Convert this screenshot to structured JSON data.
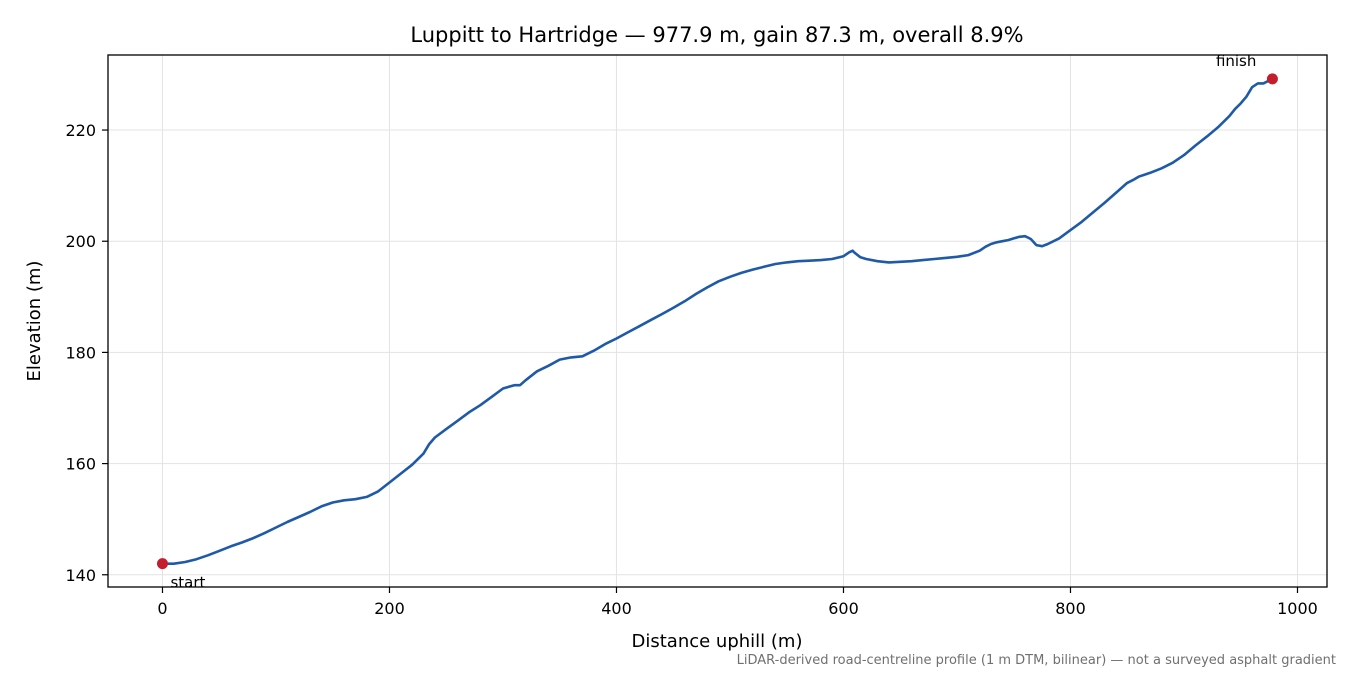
{
  "chart_data": {
    "type": "line",
    "title": "Luppitt to Hartridge — 977.9 m, gain 87.3 m, overall 8.9%",
    "xlabel": "Distance uphill (m)",
    "ylabel": "Elevation (m)",
    "xlim": [
      -48,
      1026
    ],
    "ylim": [
      137.8,
      233.5
    ],
    "xticks": [
      0,
      200,
      400,
      600,
      800,
      1000
    ],
    "yticks": [
      140,
      160,
      180,
      200,
      220
    ],
    "xtick_labels": [
      "0",
      "200",
      "400",
      "600",
      "800",
      "1000"
    ],
    "ytick_labels": [
      "140",
      "160",
      "180",
      "200",
      "220"
    ],
    "grid": true,
    "series": [
      {
        "name": "",
        "color": "#1f5aa8",
        "x": [
          0,
          10,
          20,
          30,
          40,
          50,
          60,
          70,
          80,
          90,
          100,
          110,
          120,
          130,
          140,
          150,
          160,
          170,
          180,
          190,
          200,
          210,
          220,
          230,
          235,
          240,
          250,
          260,
          270,
          280,
          290,
          300,
          310,
          315,
          320,
          330,
          340,
          350,
          360,
          370,
          380,
          390,
          400,
          410,
          420,
          430,
          440,
          450,
          460,
          470,
          480,
          490,
          500,
          510,
          520,
          530,
          540,
          550,
          560,
          570,
          580,
          590,
          600,
          605,
          608,
          610,
          615,
          620,
          630,
          640,
          650,
          660,
          670,
          680,
          690,
          700,
          710,
          720,
          725,
          730,
          735,
          740,
          745,
          750,
          755,
          760,
          765,
          770,
          775,
          780,
          790,
          800,
          810,
          820,
          830,
          840,
          850,
          855,
          860,
          870,
          880,
          890,
          900,
          910,
          920,
          930,
          940,
          945,
          950,
          955,
          960,
          965,
          970,
          977.9
        ],
        "y": [
          142.0,
          142.0,
          142.3,
          142.8,
          143.5,
          144.3,
          145.1,
          145.8,
          146.6,
          147.5,
          148.5,
          149.5,
          150.4,
          151.3,
          152.3,
          153.0,
          153.4,
          153.6,
          154.0,
          155.0,
          156.6,
          158.2,
          159.8,
          161.8,
          163.5,
          164.7,
          166.2,
          167.7,
          169.2,
          170.5,
          172.0,
          173.5,
          174.1,
          174.1,
          175.0,
          176.6,
          177.6,
          178.7,
          179.1,
          179.3,
          180.3,
          181.5,
          182.5,
          183.6,
          184.7,
          185.8,
          186.9,
          188.0,
          189.2,
          190.5,
          191.7,
          192.8,
          193.6,
          194.3,
          194.9,
          195.4,
          195.9,
          196.2,
          196.4,
          196.5,
          196.6,
          196.8,
          197.3,
          198.0,
          198.3,
          197.9,
          197.1,
          196.8,
          196.4,
          196.2,
          196.3,
          196.4,
          196.6,
          196.8,
          197.0,
          197.2,
          197.5,
          198.3,
          199.0,
          199.5,
          199.8,
          200.0,
          200.2,
          200.5,
          200.8,
          200.9,
          200.4,
          199.3,
          199.1,
          199.5,
          200.5,
          202.0,
          203.5,
          205.2,
          206.9,
          208.7,
          210.5,
          211.0,
          211.6,
          212.3,
          213.1,
          214.1,
          215.5,
          217.2,
          218.8,
          220.5,
          222.5,
          223.8,
          224.8,
          226.0,
          227.7,
          228.4,
          228.4,
          229.2
        ]
      }
    ],
    "markers": [
      {
        "x": 0,
        "y": 142.0,
        "label": "start",
        "color": "#c41e2e"
      },
      {
        "x": 977.9,
        "y": 229.2,
        "label": "finish",
        "color": "#c41e2e"
      }
    ],
    "footnote": "LiDAR-derived road-centreline profile (1 m DTM, bilinear) — not a surveyed asphalt gradient"
  }
}
